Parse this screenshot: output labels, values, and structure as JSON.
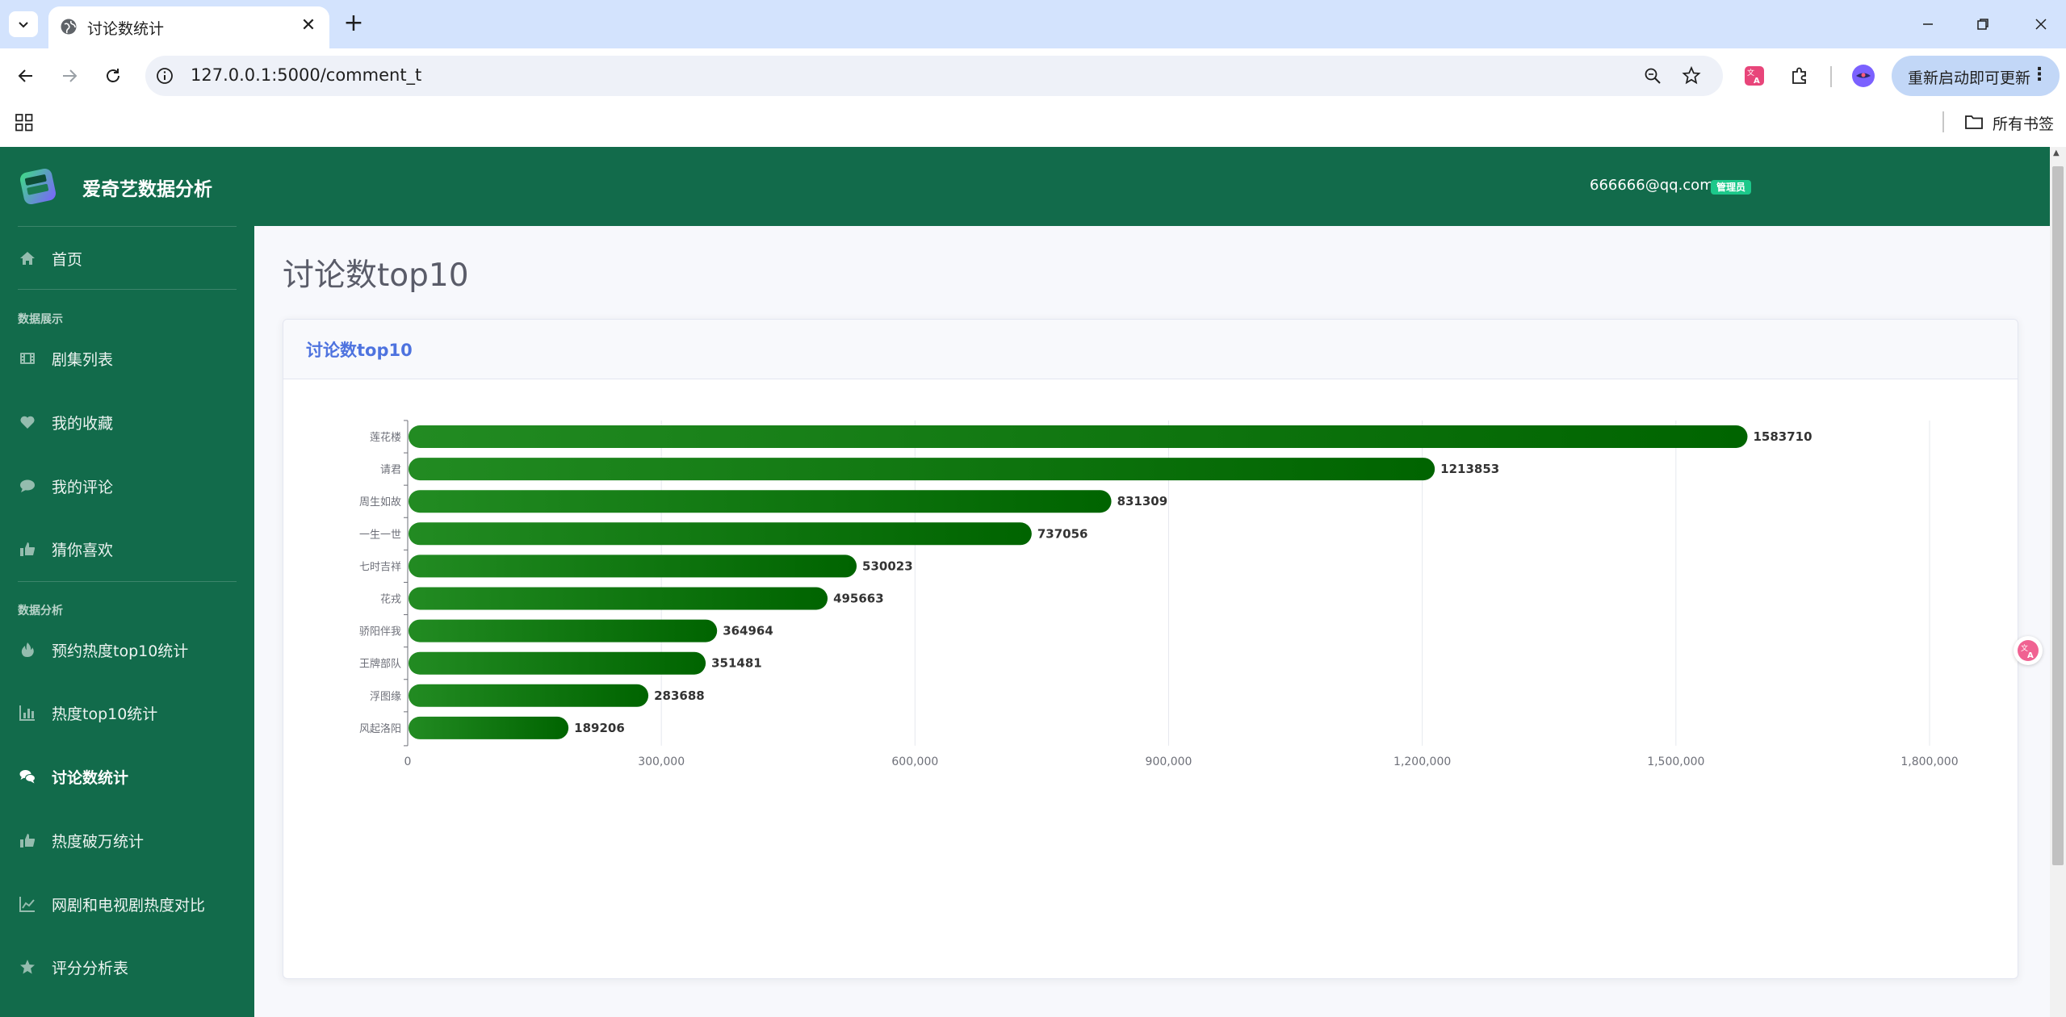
{
  "browser": {
    "tab_title": "讨论数统计",
    "url": "127.0.0.1:5000/comment_t",
    "update_label": "重新启动即可更新",
    "bookmarks_label": "所有书签"
  },
  "app": {
    "brand": "爱奇艺数据分析",
    "user_email": "666666@qq.com",
    "role_badge": "管理员"
  },
  "sidebar": {
    "home": "首页",
    "section_display": "数据展示",
    "section_analysis": "数据分析",
    "items": [
      {
        "label": "剧集列表",
        "icon": "film-icon"
      },
      {
        "label": "我的收藏",
        "icon": "heart-icon"
      },
      {
        "label": "我的评论",
        "icon": "comment-icon"
      },
      {
        "label": "猜你喜欢",
        "icon": "thumbs-up-icon"
      },
      {
        "label": "预约热度top10统计",
        "icon": "fire-icon"
      },
      {
        "label": "热度top10统计",
        "icon": "bar-chart-icon"
      },
      {
        "label": "讨论数统计",
        "icon": "comments-icon",
        "active": true
      },
      {
        "label": "热度破万统计",
        "icon": "thumbs-up-icon"
      },
      {
        "label": "网剧和电视剧热度对比",
        "icon": "line-chart-icon"
      },
      {
        "label": "评分分析表",
        "icon": "star-icon"
      }
    ]
  },
  "main": {
    "page_title": "讨论数top10",
    "card_title": "讨论数top10"
  },
  "colors": {
    "sidebar_bg": "#126b4b",
    "bar_start": "#228b22",
    "bar_end": "#006400",
    "card_title": "#4e73df"
  },
  "chart_data": {
    "type": "bar",
    "orientation": "horizontal",
    "categories": [
      "莲花楼",
      "请君",
      "周生如故",
      "一生一世",
      "七时吉祥",
      "花戎",
      "骄阳伴我",
      "王牌部队",
      "浮图缘",
      "风起洛阳"
    ],
    "values": [
      1583710,
      1213853,
      831309,
      737056,
      530023,
      495663,
      364964,
      351481,
      283688,
      189206
    ],
    "xlim": [
      0,
      1800000
    ],
    "x_ticks": [
      0,
      300000,
      600000,
      900000,
      1200000,
      1500000,
      1800000
    ],
    "x_tick_labels": [
      "0",
      "300,000",
      "600,000",
      "900,000",
      "1,200,000",
      "1,500,000",
      "1,800,000"
    ],
    "grid": "vertical",
    "data_labels": true
  }
}
